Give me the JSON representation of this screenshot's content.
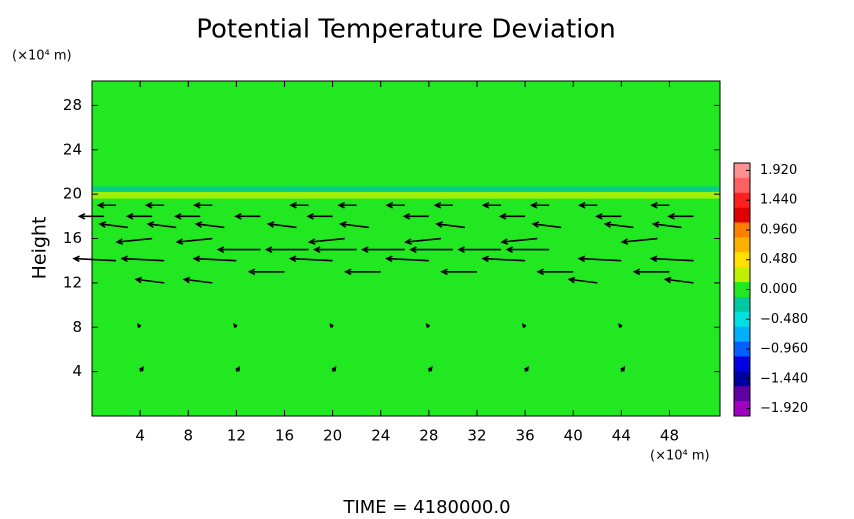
{
  "chart_data": {
    "type": "vector",
    "title": "Potential Temperature Deviation",
    "y_unit": "(×10⁴ m)",
    "x_unit": "(×10⁴ m)",
    "ylabel": "Height",
    "footer": "TIME = 4180000.0",
    "xlim": [
      0,
      52.2
    ],
    "ylim": [
      0,
      30.2
    ],
    "xticks": [
      4,
      8,
      12,
      16,
      20,
      24,
      28,
      32,
      36,
      40,
      44,
      48
    ],
    "yticks": [
      4,
      8,
      12,
      16,
      20,
      24,
      28
    ],
    "field_value": 0,
    "field_bands": [
      {
        "y": [
          20.2,
          20.7
        ],
        "value": -0.3
      },
      {
        "y": [
          19.6,
          20.2
        ],
        "value": 0.3
      }
    ],
    "arrow_color": "#000000",
    "vectors": {
      "x": [
        2,
        6,
        10,
        18,
        22,
        26,
        30,
        34,
        38,
        42,
        48,
        1,
        5,
        9,
        14,
        20,
        28,
        36,
        44,
        50,
        3,
        7,
        11,
        17,
        23,
        31,
        39,
        45,
        49,
        5,
        10,
        21,
        29,
        37,
        47,
        14,
        18,
        22,
        26,
        30,
        34,
        38,
        2,
        6,
        12,
        20,
        28,
        36,
        44,
        50,
        16,
        24,
        32,
        40,
        48,
        6,
        10,
        42,
        50,
        4,
        12,
        20,
        28,
        36,
        44,
        4,
        12,
        20,
        28,
        36,
        44
      ],
      "y": [
        19,
        19,
        19,
        19,
        19,
        19,
        19,
        19,
        19,
        19,
        19,
        18,
        18,
        18,
        18,
        18,
        18,
        18,
        18,
        18,
        17,
        17,
        17,
        17,
        17,
        17,
        17,
        17,
        17,
        16,
        16,
        16,
        16,
        16,
        16,
        15,
        15,
        15,
        15,
        15,
        15,
        15,
        14,
        14,
        14,
        14,
        14,
        14,
        14,
        14,
        13,
        13,
        13,
        13,
        13,
        12,
        12,
        12,
        12,
        4,
        4,
        4,
        4,
        4,
        4,
        8,
        8,
        8,
        8,
        8,
        8
      ],
      "u": [
        -2.5,
        -2.5,
        -2.5,
        -2.5,
        -2.5,
        -2.5,
        -2.5,
        -2.5,
        -2.5,
        -2.5,
        -2.5,
        -3.5,
        -3.5,
        -3.5,
        -3.5,
        -3.5,
        -3.5,
        -3.5,
        -3.5,
        -3.5,
        -4,
        -4,
        -4,
        -4,
        -4,
        -4,
        -4,
        -4,
        -4,
        -5,
        -5,
        -5,
        -5,
        -5,
        -5,
        -6,
        -6,
        -6,
        -6,
        -6,
        -6,
        -6,
        -6,
        -6,
        -6,
        -6,
        -6,
        -6,
        -6,
        -6,
        -5,
        -5,
        -5,
        -5,
        -5,
        -4,
        -4,
        -4,
        -4,
        0.4,
        0.4,
        0.4,
        0.4,
        0.4,
        0.4,
        -0.3,
        -0.3,
        -0.3,
        -0.3,
        -0.3,
        -0.3
      ],
      "v": [
        0,
        0,
        0,
        0,
        0,
        0,
        0,
        0,
        0,
        0,
        0,
        0,
        0,
        0,
        0,
        0,
        0,
        0,
        0,
        0,
        0.5,
        0.5,
        0.5,
        0.5,
        0.5,
        0.5,
        0.5,
        0.5,
        0.5,
        -0.5,
        -0.5,
        -0.5,
        -0.5,
        -0.5,
        -0.5,
        0,
        0,
        0,
        0,
        0,
        0,
        0,
        0.3,
        0.3,
        0.3,
        0.3,
        0.3,
        0.3,
        0.3,
        0.3,
        0,
        0,
        0,
        0,
        0,
        0.5,
        0.5,
        0.5,
        0.5,
        0.6,
        0.6,
        0.6,
        0.6,
        0.6,
        0.6,
        0.4,
        0.4,
        0.4,
        0.4,
        0.4,
        0.4
      ]
    },
    "colorbar": {
      "lim": [
        -2.04,
        2.04
      ],
      "colors": [
        "#ff9090",
        "#ff6060",
        "#ff2020",
        "#e00000",
        "#ff8000",
        "#ffb000",
        "#ffe000",
        "#c0f000",
        "#22e822",
        "#00c8a0",
        "#00e0e0",
        "#00b0ff",
        "#0060ff",
        "#0000e0",
        "#0000a0",
        "#6000a0",
        "#a000c0"
      ],
      "ticks": [
        {
          "value": 1.92,
          "label": "1.920"
        },
        {
          "value": 1.44,
          "label": "1.440"
        },
        {
          "value": 0.96,
          "label": "0.960"
        },
        {
          "value": 0.48,
          "label": "0.480"
        },
        {
          "value": 0,
          "label": "0.000"
        },
        {
          "value": -0.48,
          "label": "−0.480"
        },
        {
          "value": -0.96,
          "label": "−0.960"
        },
        {
          "value": -1.44,
          "label": "−1.440"
        },
        {
          "value": -1.92,
          "label": "−1.920"
        }
      ]
    }
  }
}
